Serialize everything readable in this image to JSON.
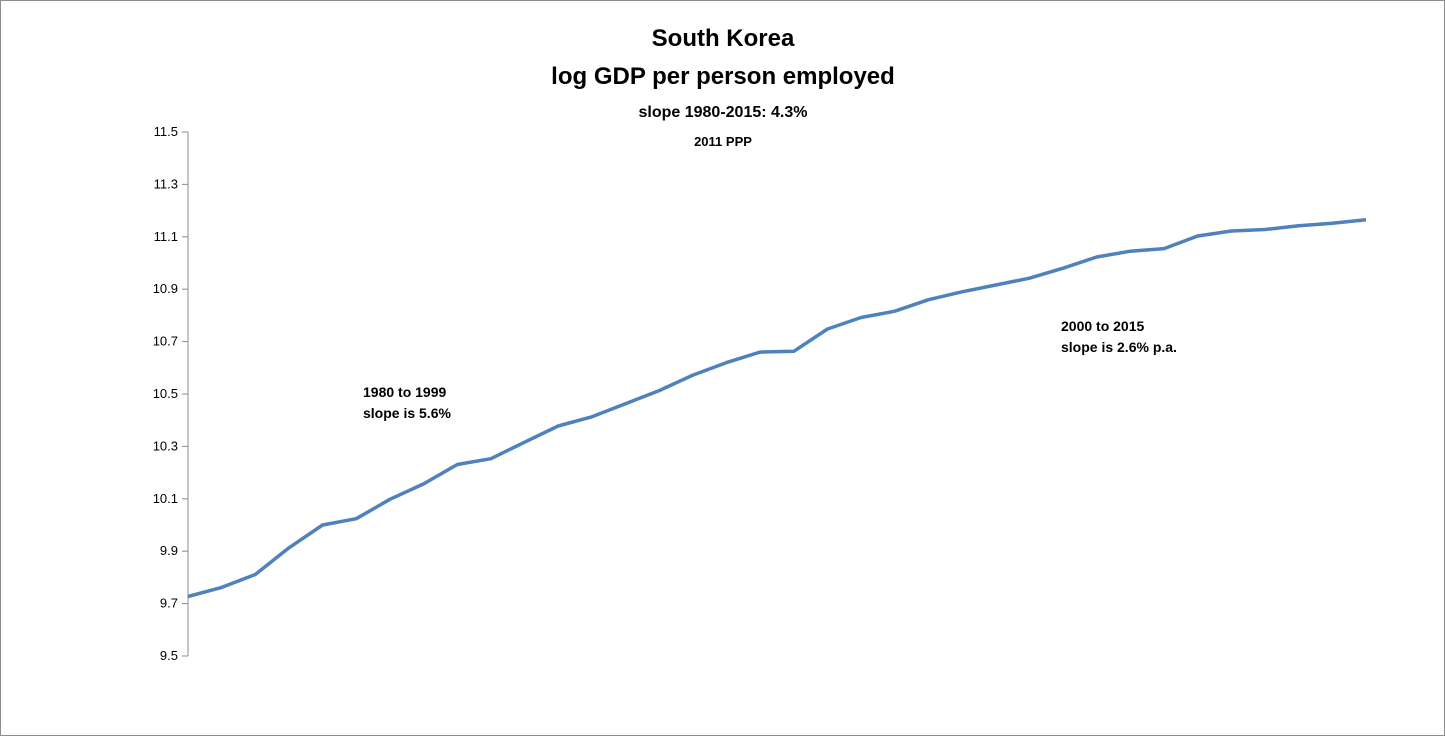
{
  "chart_data": {
    "type": "line",
    "title": "South Korea",
    "subtitle": "log GDP per person employed",
    "subtitle2": "slope 1980-2015:  4.3%",
    "subtitle3": "2011 PPP",
    "xlabel": "",
    "ylabel": "",
    "ylim": [
      9.5,
      11.5
    ],
    "yticks": [
      "11.5",
      "11.3",
      "11.1",
      "10.9",
      "10.7",
      "10.5",
      "10.3",
      "10.1",
      "9.9",
      "9.7",
      "9.5"
    ],
    "grid": false,
    "legend": "none",
    "line_color": "#4f81bd",
    "x": [
      1980,
      1981,
      1982,
      1983,
      1984,
      1985,
      1986,
      1987,
      1988,
      1989,
      1990,
      1991,
      1992,
      1993,
      1994,
      1995,
      1996,
      1997,
      1998,
      1999,
      2000,
      2001,
      2002,
      2003,
      2004,
      2005,
      2006,
      2007,
      2008,
      2009,
      2010,
      2011,
      2012,
      2013,
      2014,
      2015
    ],
    "series": [
      {
        "values": [
          9.727,
          9.762,
          9.811,
          9.913,
          10.0,
          10.024,
          10.098,
          10.157,
          10.231,
          10.253,
          10.316,
          10.378,
          10.413,
          10.463,
          10.513,
          10.572,
          10.62,
          10.66,
          10.663,
          10.748,
          10.792,
          10.816,
          10.86,
          10.89,
          10.916,
          10.942,
          10.98,
          11.023,
          11.045,
          11.055,
          11.103,
          11.122,
          11.128,
          11.142,
          11.152,
          11.165
        ]
      }
    ],
    "annotations": [
      {
        "lines": [
          "1980 to 1999",
          "slope is 5.6%"
        ]
      },
      {
        "lines": [
          "2000 to 2015",
          "slope is 2.6% p.a."
        ]
      }
    ]
  }
}
